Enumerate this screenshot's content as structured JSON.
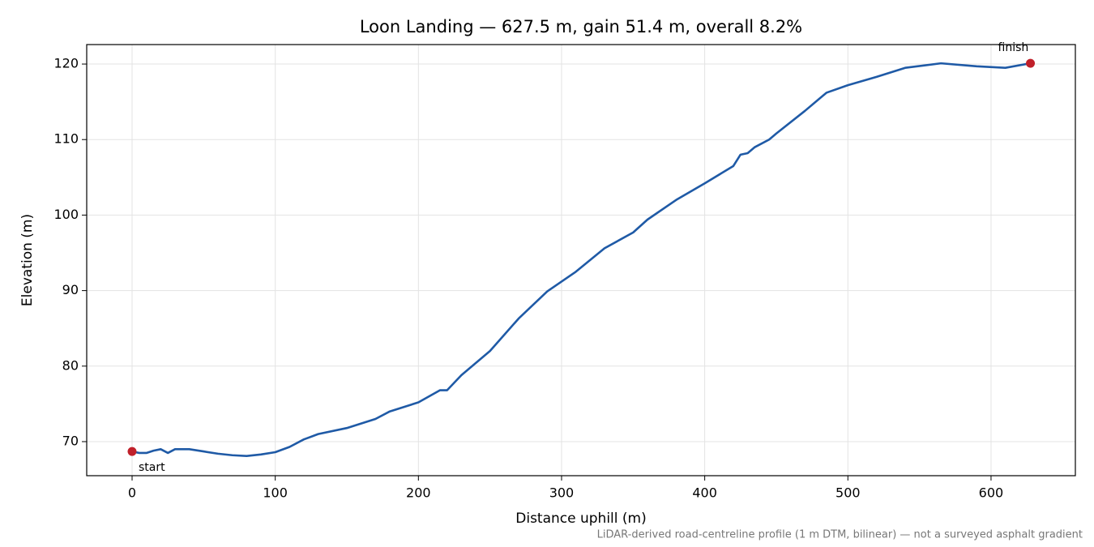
{
  "chart_data": {
    "type": "line",
    "title": "Loon Landing — 627.5 m, gain 51.4 m, overall 8.2%",
    "x_label": "Distance uphill (m)",
    "y_label": "Elevation (m)",
    "footnote": "LiDAR-derived road-centreline profile (1 m DTM, bilinear) — not a surveyed asphalt gradient",
    "color": "#1f5aa6",
    "marker_color": "#c0202a",
    "grid": true,
    "x": [
      0,
      5,
      10,
      15,
      20,
      25,
      30,
      35,
      40,
      50,
      60,
      70,
      80,
      90,
      100,
      110,
      120,
      130,
      150,
      170,
      180,
      200,
      215,
      220,
      230,
      250,
      270,
      290,
      300,
      310,
      330,
      350,
      360,
      380,
      400,
      420,
      425,
      430,
      435,
      445,
      450,
      470,
      485,
      500,
      520,
      540,
      565,
      590,
      610,
      627.5
    ],
    "values": [
      68.7,
      68.5,
      68.5,
      68.8,
      69.0,
      68.5,
      69.0,
      69.0,
      69.0,
      68.7,
      68.4,
      68.2,
      68.1,
      68.3,
      68.6,
      69.3,
      70.3,
      71.0,
      71.8,
      73.0,
      74.0,
      75.2,
      76.8,
      76.8,
      78.8,
      82.0,
      86.3,
      89.9,
      91.2,
      92.5,
      95.6,
      97.7,
      99.4,
      102.0,
      104.2,
      106.5,
      108.0,
      108.2,
      109.0,
      110.0,
      110.8,
      113.8,
      116.2,
      117.2,
      118.3,
      119.5,
      120.1,
      119.7,
      119.5,
      120.1
    ],
    "points": [
      {
        "label": "start",
        "x": 0,
        "y": 68.7
      },
      {
        "label": "finish",
        "x": 627.5,
        "y": 120.1
      }
    ],
    "xlim": [
      -31.7,
      658.9
    ],
    "ylim": [
      65.49,
      122.58
    ],
    "xticks": [
      0,
      100,
      200,
      300,
      400,
      500,
      600
    ],
    "yticks": [
      70,
      80,
      90,
      100,
      110,
      120
    ]
  }
}
